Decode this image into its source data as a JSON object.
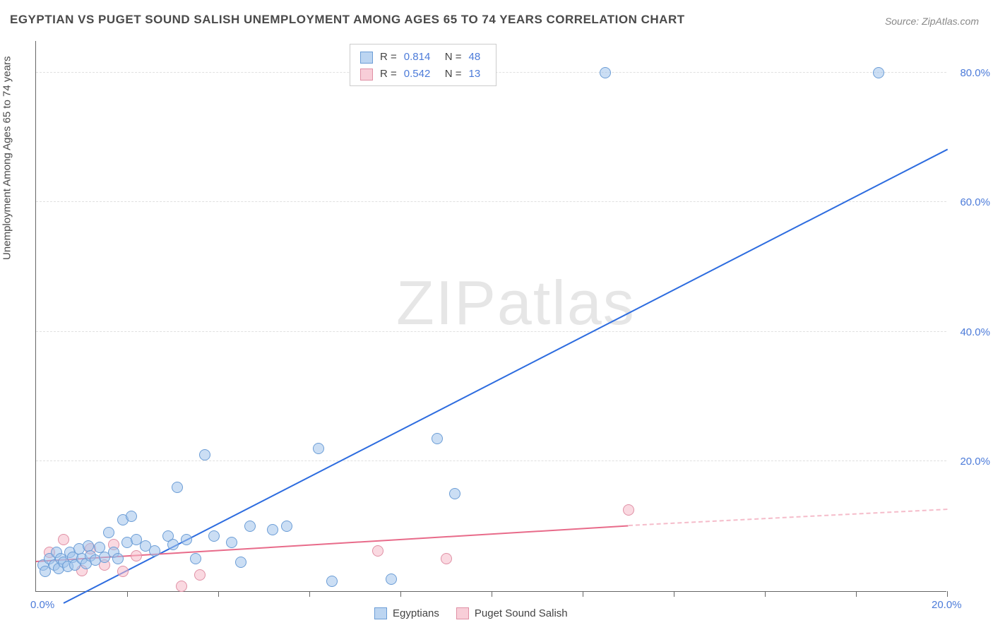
{
  "title": "EGYPTIAN VS PUGET SOUND SALISH UNEMPLOYMENT AMONG AGES 65 TO 74 YEARS CORRELATION CHART",
  "source": "Source: ZipAtlas.com",
  "y_axis_label": "Unemployment Among Ages 65 to 74 years",
  "watermark": "ZIPatlas",
  "chart": {
    "type": "scatter",
    "xlim": [
      0,
      20
    ],
    "ylim": [
      0,
      85
    ],
    "x_ticks": [
      0,
      2,
      4,
      6,
      8,
      10,
      12,
      14,
      16,
      18,
      20
    ],
    "x_tick_labels": {
      "0": "0.0%",
      "20": "20.0%"
    },
    "y_ticks": [
      20,
      40,
      60,
      80
    ],
    "y_tick_labels": {
      "20": "20.0%",
      "40": "40.0%",
      "60": "60.0%",
      "80": "80.0%"
    },
    "grid_color": "#e0e0e0",
    "axis_color": "#666666",
    "background_color": "#ffffff"
  },
  "series": {
    "blue": {
      "name": "Egyptians",
      "marker_fill": "rgba(160,195,235,0.55)",
      "marker_stroke": "#6b9dd6",
      "line_color": "#2d6cdf",
      "R": "0.814",
      "N": "48",
      "trend": {
        "x1": 0.6,
        "y1": -2,
        "x2": 20,
        "y2": 68
      },
      "points": [
        [
          0.15,
          4
        ],
        [
          0.2,
          3
        ],
        [
          0.3,
          5
        ],
        [
          0.4,
          4
        ],
        [
          0.45,
          6
        ],
        [
          0.5,
          3.5
        ],
        [
          0.55,
          5
        ],
        [
          0.6,
          4.5
        ],
        [
          0.7,
          3.8
        ],
        [
          0.75,
          6
        ],
        [
          0.8,
          5.2
        ],
        [
          0.85,
          4
        ],
        [
          0.95,
          6.5
        ],
        [
          1.0,
          5
        ],
        [
          1.1,
          4.2
        ],
        [
          1.15,
          7
        ],
        [
          1.2,
          5.5
        ],
        [
          1.3,
          4.8
        ],
        [
          1.4,
          6.8
        ],
        [
          1.5,
          5.2
        ],
        [
          1.6,
          9
        ],
        [
          1.7,
          6
        ],
        [
          1.8,
          5
        ],
        [
          1.9,
          11
        ],
        [
          2.0,
          7.5
        ],
        [
          2.1,
          11.5
        ],
        [
          2.2,
          8
        ],
        [
          2.4,
          7
        ],
        [
          2.6,
          6.2
        ],
        [
          2.9,
          8.5
        ],
        [
          3.0,
          7.2
        ],
        [
          3.1,
          16
        ],
        [
          3.3,
          8
        ],
        [
          3.5,
          5
        ],
        [
          3.7,
          21
        ],
        [
          3.9,
          8.5
        ],
        [
          4.3,
          7.5
        ],
        [
          4.5,
          4.5
        ],
        [
          4.7,
          10
        ],
        [
          5.2,
          9.5
        ],
        [
          5.5,
          10
        ],
        [
          6.2,
          22
        ],
        [
          6.5,
          1.5
        ],
        [
          7.8,
          1.8
        ],
        [
          8.8,
          23.5
        ],
        [
          9.2,
          15
        ],
        [
          12.5,
          80
        ],
        [
          18.5,
          80
        ]
      ]
    },
    "pink": {
      "name": "Puget Sound Salish",
      "marker_fill": "rgba(245,185,200,0.55)",
      "marker_stroke": "#e090a5",
      "line_color": "#e86b8a",
      "R": "0.542",
      "N": "13",
      "trend_solid": {
        "x1": 0,
        "y1": 4.5,
        "x2": 13,
        "y2": 10
      },
      "trend_dash": {
        "x1": 13,
        "y1": 10,
        "x2": 20,
        "y2": 12.5
      },
      "points": [
        [
          0.3,
          6
        ],
        [
          0.6,
          8
        ],
        [
          1.0,
          3.2
        ],
        [
          1.2,
          6.5
        ],
        [
          1.5,
          4
        ],
        [
          1.7,
          7.2
        ],
        [
          1.9,
          3
        ],
        [
          2.2,
          5.5
        ],
        [
          3.2,
          0.8
        ],
        [
          3.6,
          2.5
        ],
        [
          7.5,
          6.2
        ],
        [
          9.0,
          5
        ],
        [
          13.0,
          12.5
        ]
      ]
    }
  },
  "legend_top": {
    "rows": [
      {
        "swatch": "blue",
        "R_label": "R  =",
        "R": "0.814",
        "N_label": "N  =",
        "N": "48"
      },
      {
        "swatch": "pink",
        "R_label": "R  =",
        "R": "0.542",
        "N_label": "N  =",
        "N": "13"
      }
    ]
  },
  "legend_bottom": {
    "items": [
      {
        "swatch": "blue",
        "label": "Egyptians"
      },
      {
        "swatch": "pink",
        "label": "Puget Sound Salish"
      }
    ]
  }
}
